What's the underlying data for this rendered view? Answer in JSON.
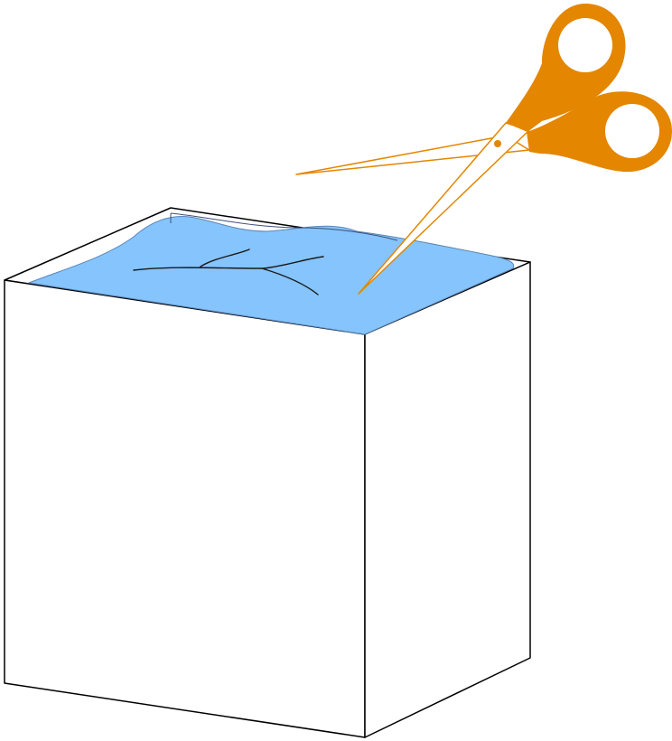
{
  "scene": {
    "box": {
      "front_color": "#ffffff",
      "outline_color": "#000000"
    },
    "bag": {
      "fill_color": "#85c4fc",
      "edge_color": "#5a86b8",
      "wrinkle_color": "#1a1a1a"
    },
    "scissors": {
      "handle_color": "#e48600",
      "blade_color": "#ffffff",
      "blade_outline_color": "#e48600"
    }
  }
}
